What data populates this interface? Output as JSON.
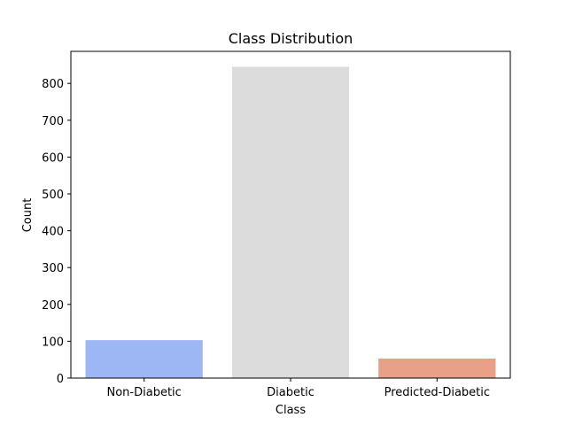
{
  "chart_data": {
    "type": "bar",
    "title": "Class Distribution",
    "xlabel": "Class",
    "ylabel": "Count",
    "categories": [
      "Non-Diabetic",
      "Diabetic",
      "Predicted-Diabetic"
    ],
    "values": [
      103,
      845,
      53
    ],
    "colors": [
      "#9db6f4",
      "#dcdcdc",
      "#e8a088"
    ],
    "ylim": [
      0,
      887
    ],
    "yticks": [
      0,
      100,
      200,
      300,
      400,
      500,
      600,
      700,
      800
    ],
    "grid": false
  }
}
